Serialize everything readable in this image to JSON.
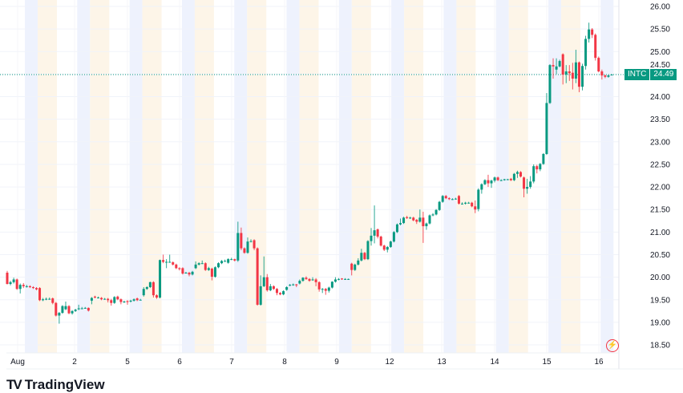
{
  "symbol": "INTC",
  "last_price": "24.49",
  "brand": "TradingView",
  "colors": {
    "up": "#089981",
    "down": "#f23645",
    "premarket": "#eef2fd",
    "postmarket": "#fdf5e8",
    "grid": "#f0f3fa",
    "last_line": "#089981"
  },
  "chart_data": {
    "type": "candlestick",
    "title": "INTC",
    "ylim": [
      18.35,
      26.1
    ],
    "y_ticks": [
      "26.00",
      "25.50",
      "25.00",
      "24.50",
      "24.00",
      "23.50",
      "23.00",
      "22.50",
      "22.00",
      "21.50",
      "21.00",
      "20.50",
      "20.00",
      "19.50",
      "19.00",
      "18.50"
    ],
    "x_ticks": [
      "Aug",
      "2",
      "5",
      "6",
      "7",
      "8",
      "9",
      "12",
      "13",
      "14",
      "15",
      "16"
    ],
    "candles_ohlc": [
      [
        20.1,
        20.14,
        19.84,
        19.85
      ],
      [
        19.85,
        19.92,
        19.82,
        19.89
      ],
      [
        19.89,
        19.99,
        19.86,
        19.95
      ],
      [
        19.95,
        19.97,
        19.72,
        19.74
      ],
      [
        19.74,
        19.86,
        19.64,
        19.83
      ],
      [
        19.83,
        19.87,
        19.76,
        19.8
      ],
      [
        19.8,
        19.83,
        19.77,
        19.8
      ],
      [
        19.8,
        19.82,
        19.76,
        19.78
      ],
      [
        19.78,
        19.8,
        19.74,
        19.76
      ],
      [
        19.76,
        19.78,
        19.71,
        19.73
      ],
      [
        19.76,
        19.78,
        19.47,
        19.49
      ],
      [
        19.49,
        19.54,
        19.47,
        19.51
      ],
      [
        19.51,
        19.55,
        19.49,
        19.52
      ],
      [
        19.52,
        19.55,
        19.5,
        19.52
      ],
      [
        19.53,
        19.55,
        19.4,
        19.43
      ],
      [
        19.43,
        19.45,
        19.13,
        19.15
      ],
      [
        19.15,
        19.23,
        18.97,
        19.21
      ],
      [
        19.21,
        19.38,
        19.19,
        19.36
      ],
      [
        19.29,
        19.46,
        19.27,
        19.36
      ],
      [
        19.36,
        19.38,
        19.18,
        19.2
      ],
      [
        19.2,
        19.27,
        19.17,
        19.25
      ],
      [
        19.25,
        19.3,
        19.23,
        19.28
      ],
      [
        19.29,
        19.39,
        19.27,
        19.31
      ],
      [
        19.31,
        19.34,
        19.29,
        19.31
      ],
      [
        19.31,
        19.34,
        19.3,
        19.32
      ],
      [
        19.32,
        19.33,
        19.24,
        19.26
      ],
      [
        19.48,
        19.56,
        19.4,
        19.54
      ],
      [
        19.57,
        19.59,
        19.53,
        19.55
      ],
      [
        19.55,
        19.57,
        19.53,
        19.55
      ],
      [
        19.54,
        19.56,
        19.49,
        19.51
      ],
      [
        19.52,
        19.54,
        19.5,
        19.52
      ],
      [
        19.52,
        19.54,
        19.44,
        19.49
      ],
      [
        19.49,
        19.52,
        19.37,
        19.43
      ],
      [
        19.43,
        19.58,
        19.41,
        19.56
      ],
      [
        19.57,
        19.59,
        19.49,
        19.51
      ],
      [
        19.51,
        19.53,
        19.4,
        19.45
      ],
      [
        19.46,
        19.48,
        19.43,
        19.46
      ],
      [
        19.47,
        19.49,
        19.39,
        19.45
      ],
      [
        19.46,
        19.5,
        19.44,
        19.48
      ],
      [
        19.48,
        19.53,
        19.46,
        19.51
      ],
      [
        19.53,
        19.55,
        19.47,
        19.49
      ],
      [
        19.5,
        19.52,
        19.49,
        19.5
      ],
      [
        19.6,
        19.78,
        19.57,
        19.74
      ],
      [
        19.74,
        19.8,
        19.72,
        19.78
      ],
      [
        19.78,
        19.9,
        19.76,
        19.89
      ],
      [
        19.89,
        19.91,
        19.55,
        19.6
      ],
      [
        19.6,
        19.62,
        19.52,
        19.55
      ],
      [
        19.55,
        20.39,
        19.53,
        20.38
      ],
      [
        20.38,
        20.5,
        20.31,
        20.34
      ],
      [
        20.34,
        20.4,
        20.2,
        20.34
      ],
      [
        20.34,
        20.5,
        20.32,
        20.34
      ],
      [
        20.33,
        20.35,
        20.26,
        20.28
      ],
      [
        20.28,
        20.3,
        20.18,
        20.2
      ],
      [
        20.2,
        20.22,
        20.15,
        20.18
      ],
      [
        20.2,
        20.22,
        20.06,
        20.08
      ],
      [
        20.1,
        20.12,
        20.08,
        20.1
      ],
      [
        20.1,
        20.12,
        20.02,
        20.06
      ],
      [
        20.06,
        20.14,
        20.04,
        20.12
      ],
      [
        20.2,
        20.35,
        20.18,
        20.28
      ],
      [
        20.28,
        20.33,
        20.26,
        20.31
      ],
      [
        20.31,
        20.37,
        20.29,
        20.31
      ],
      [
        20.31,
        20.33,
        20.14,
        20.16
      ],
      [
        20.16,
        20.23,
        20.14,
        20.2
      ],
      [
        20.19,
        20.21,
        19.93,
        20.01
      ],
      [
        20.01,
        20.24,
        19.99,
        20.22
      ],
      [
        20.22,
        20.33,
        20.2,
        20.31
      ],
      [
        20.31,
        20.38,
        20.29,
        20.36
      ],
      [
        20.36,
        20.39,
        20.34,
        20.36
      ],
      [
        20.32,
        20.42,
        20.3,
        20.4
      ],
      [
        20.4,
        20.43,
        20.38,
        20.4
      ],
      [
        20.4,
        20.41,
        20.35,
        20.37
      ],
      [
        20.37,
        21.23,
        20.34,
        20.98
      ],
      [
        20.98,
        21.1,
        20.6,
        20.64
      ],
      [
        20.64,
        20.66,
        20.52,
        20.54
      ],
      [
        20.54,
        20.88,
        20.52,
        20.79
      ],
      [
        20.79,
        20.84,
        20.77,
        20.8
      ],
      [
        20.82,
        20.84,
        20.6,
        20.64
      ],
      [
        20.64,
        20.66,
        19.37,
        19.39
      ],
      [
        19.39,
        20.04,
        19.37,
        19.8
      ],
      [
        19.8,
        20.46,
        19.78,
        20.0
      ],
      [
        20.0,
        20.07,
        19.68,
        19.71
      ],
      [
        19.71,
        19.85,
        19.69,
        19.8
      ],
      [
        19.8,
        19.82,
        19.72,
        19.74
      ],
      [
        19.74,
        19.76,
        19.6,
        19.65
      ],
      [
        19.65,
        19.67,
        19.6,
        19.62
      ],
      [
        19.62,
        19.71,
        19.6,
        19.69
      ],
      [
        19.72,
        19.8,
        19.7,
        19.78
      ],
      [
        19.82,
        19.85,
        19.8,
        19.83
      ],
      [
        19.83,
        19.86,
        19.81,
        19.84
      ],
      [
        19.84,
        19.85,
        19.78,
        19.82
      ],
      [
        19.86,
        19.95,
        19.84,
        19.92
      ],
      [
        19.92,
        20.0,
        19.9,
        19.99
      ],
      [
        19.99,
        20.02,
        19.94,
        19.96
      ],
      [
        19.96,
        19.98,
        19.9,
        19.92
      ],
      [
        19.94,
        20.0,
        19.92,
        19.95
      ],
      [
        19.95,
        19.98,
        19.8,
        19.89
      ],
      [
        19.89,
        19.91,
        19.68,
        19.73
      ],
      [
        19.74,
        19.76,
        19.65,
        19.74
      ],
      [
        19.74,
        19.76,
        19.61,
        19.7
      ],
      [
        19.7,
        19.79,
        19.66,
        19.77
      ],
      [
        19.77,
        19.91,
        19.75,
        19.9
      ],
      [
        19.9,
        20.0,
        19.88,
        19.95
      ],
      [
        19.95,
        19.98,
        19.93,
        19.96
      ],
      [
        19.97,
        19.98,
        19.94,
        19.96
      ],
      [
        19.96,
        19.98,
        19.94,
        19.96
      ],
      [
        19.95,
        19.97,
        19.94,
        19.96
      ],
      [
        20.3,
        20.32,
        20.04,
        20.16
      ],
      [
        20.16,
        20.3,
        20.14,
        20.28
      ],
      [
        20.28,
        20.42,
        20.26,
        20.37
      ],
      [
        20.37,
        20.63,
        20.35,
        20.54
      ],
      [
        20.54,
        20.56,
        20.38,
        20.4
      ],
      [
        20.4,
        20.82,
        20.38,
        20.8
      ],
      [
        20.8,
        21.09,
        20.7,
        20.92
      ],
      [
        20.92,
        21.59,
        20.75,
        21.04
      ],
      [
        21.06,
        21.08,
        20.86,
        20.9
      ],
      [
        20.9,
        20.92,
        20.68,
        20.7
      ],
      [
        20.7,
        20.72,
        20.58,
        20.61
      ],
      [
        20.61,
        20.69,
        20.55,
        20.67
      ],
      [
        20.67,
        20.81,
        20.65,
        20.79
      ],
      [
        20.79,
        21.02,
        20.77,
        21.0
      ],
      [
        21.0,
        21.19,
        20.98,
        21.17
      ],
      [
        21.17,
        21.3,
        21.15,
        21.2
      ],
      [
        21.2,
        21.34,
        21.18,
        21.32
      ],
      [
        21.33,
        21.36,
        21.29,
        21.31
      ],
      [
        21.31,
        21.34,
        21.29,
        21.32
      ],
      [
        21.32,
        21.34,
        21.24,
        21.26
      ],
      [
        21.27,
        21.29,
        21.18,
        21.23
      ],
      [
        21.23,
        21.5,
        21.21,
        21.32
      ],
      [
        21.32,
        21.45,
        20.76,
        21.13
      ],
      [
        21.13,
        21.21,
        21.05,
        21.19
      ],
      [
        21.19,
        21.39,
        21.17,
        21.37
      ],
      [
        21.37,
        21.42,
        21.35,
        21.39
      ],
      [
        21.39,
        21.51,
        21.37,
        21.49
      ],
      [
        21.49,
        21.69,
        21.47,
        21.67
      ],
      [
        21.67,
        21.82,
        21.65,
        21.8
      ],
      [
        21.8,
        21.82,
        21.73,
        21.75
      ],
      [
        21.75,
        21.77,
        21.71,
        21.73
      ],
      [
        21.73,
        21.75,
        21.71,
        21.73
      ],
      [
        21.73,
        21.76,
        21.72,
        21.74
      ],
      [
        21.8,
        21.82,
        21.61,
        21.63
      ],
      [
        21.63,
        21.66,
        21.61,
        21.63
      ],
      [
        21.63,
        21.67,
        21.61,
        21.65
      ],
      [
        21.65,
        21.67,
        21.63,
        21.65
      ],
      [
        21.65,
        21.67,
        21.55,
        21.57
      ],
      [
        21.57,
        21.7,
        21.42,
        21.5
      ],
      [
        21.51,
        21.97,
        21.46,
        21.94
      ],
      [
        21.94,
        22.08,
        21.85,
        22.06
      ],
      [
        22.06,
        22.17,
        22.04,
        22.15
      ],
      [
        22.15,
        22.27,
        22.0,
        22.08
      ],
      [
        22.08,
        22.16,
        21.98,
        22.14
      ],
      [
        22.14,
        22.23,
        22.1,
        22.21
      ],
      [
        22.21,
        22.23,
        22.13,
        22.15
      ],
      [
        22.15,
        22.17,
        22.13,
        22.15
      ],
      [
        22.15,
        22.18,
        22.14,
        22.17
      ],
      [
        22.16,
        22.18,
        22.15,
        22.17
      ],
      [
        22.18,
        22.2,
        22.13,
        22.15
      ],
      [
        22.15,
        22.31,
        22.13,
        22.29
      ],
      [
        22.29,
        22.36,
        22.2,
        22.33
      ],
      [
        22.33,
        22.35,
        22.21,
        22.23
      ],
      [
        22.21,
        22.23,
        21.77,
        21.96
      ],
      [
        21.96,
        22.18,
        21.85,
        22.0
      ],
      [
        22.0,
        22.24,
        21.96,
        22.12
      ],
      [
        22.12,
        22.5,
        22.08,
        22.46
      ],
      [
        22.46,
        22.49,
        22.3,
        22.39
      ],
      [
        22.39,
        22.53,
        22.35,
        22.51
      ],
      [
        22.51,
        22.75,
        22.49,
        22.73
      ],
      [
        22.73,
        24.08,
        22.71,
        23.86
      ],
      [
        23.86,
        24.72,
        23.84,
        24.7
      ],
      [
        24.7,
        24.85,
        24.4,
        24.67
      ],
      [
        24.6,
        24.85,
        24.5,
        24.67
      ],
      [
        24.67,
        24.82,
        24.65,
        24.79
      ],
      [
        24.94,
        24.96,
        24.27,
        24.49
      ],
      [
        24.49,
        24.7,
        24.3,
        24.56
      ],
      [
        24.56,
        24.7,
        24.35,
        24.52
      ],
      [
        24.53,
        24.75,
        24.16,
        24.4
      ],
      [
        24.4,
        25.04,
        24.3,
        24.76
      ],
      [
        24.76,
        24.78,
        24.1,
        24.22
      ],
      [
        24.22,
        24.73,
        24.14,
        24.68
      ],
      [
        24.68,
        25.35,
        24.6,
        25.28
      ],
      [
        25.28,
        25.64,
        25.2,
        25.49
      ],
      [
        25.49,
        25.52,
        25.3,
        25.37
      ],
      [
        25.37,
        25.4,
        24.8,
        24.86
      ],
      [
        24.86,
        24.89,
        24.54,
        24.56
      ],
      [
        24.56,
        24.6,
        24.38,
        24.47
      ],
      [
        24.47,
        24.49,
        24.41,
        24.44
      ],
      [
        24.44,
        24.49,
        24.42,
        24.47
      ],
      [
        24.48,
        24.5,
        24.47,
        24.49
      ]
    ],
    "grid": true,
    "legend": "none"
  }
}
